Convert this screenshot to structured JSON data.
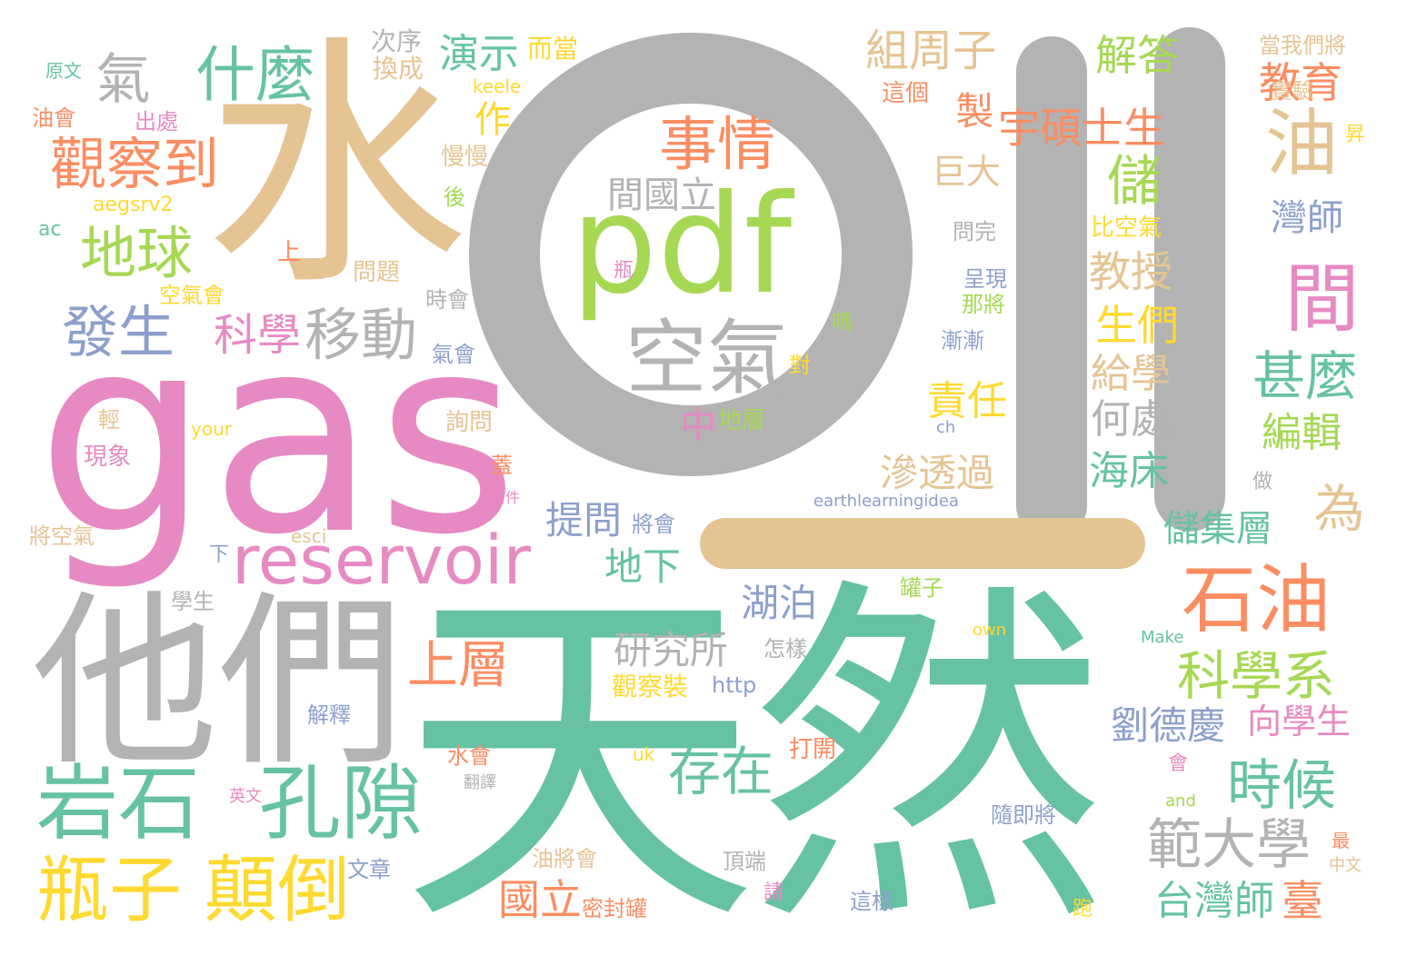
{
  "palette": {
    "green": "#66c2a5",
    "orange": "#fc8d62",
    "blue": "#8da0cb",
    "pink": "#e78ac3",
    "lime": "#a6d854",
    "yellow": "#ffd92f",
    "tan": "#e5c494",
    "gray": "#b3b3b3"
  },
  "words": [
    "oil",
    "天然",
    "gas",
    "水",
    "他們",
    "pdf",
    "reservoir",
    "岩石",
    "孔隙",
    "空氣",
    "瓶子",
    "顛倒",
    "石油",
    "油",
    "間",
    "事情",
    "觀察到",
    "什麼",
    "氣",
    "地球",
    "發生",
    "移動",
    "科學",
    "科學系",
    "存在",
    "時候",
    "範大學",
    "甚麼",
    "儲",
    "宇碩士生",
    "組周子",
    "解答",
    "教育",
    "教授",
    "生們",
    "給學",
    "何處",
    "責任",
    "滲透過",
    "海床",
    "編輯",
    "儲集層",
    "為",
    "上層",
    "研究所",
    "湖泊",
    "提問",
    "地下",
    "劉德慶",
    "向學生",
    "國立",
    "台灣師",
    "臺",
    "間國立",
    "巨大",
    "灣師",
    "演示",
    "而當",
    "次序",
    "換成",
    "作",
    "製",
    "中",
    "地層",
    "原文",
    "油會",
    "出處",
    "慢慢",
    "後",
    "aegsrv2",
    "ac",
    "上",
    "空氣會",
    "問題",
    "時會",
    "氣會",
    "詢問",
    "your",
    "輕",
    "現象",
    "蓋",
    "附件",
    "將空氣",
    "esci",
    "下",
    "學生",
    "將會",
    "earthlearningidea",
    "罐子",
    "own",
    "Make",
    "怎樣",
    "觀察裝",
    "http",
    "解釋",
    "水會",
    "uk",
    "翻譯",
    "英文",
    "打開",
    "會",
    "and",
    "隨即將",
    "做",
    "最",
    "中文",
    "跑",
    "這樣",
    "文章",
    "油將會",
    "頂端",
    "請",
    "密封罐",
    "瓶",
    "這個",
    "實驗",
    "當我們將",
    "昇",
    "問完",
    "比空氣",
    "呈現",
    "那將",
    "漸漸",
    "嗎",
    "對",
    "ch",
    "keele"
  ]
}
